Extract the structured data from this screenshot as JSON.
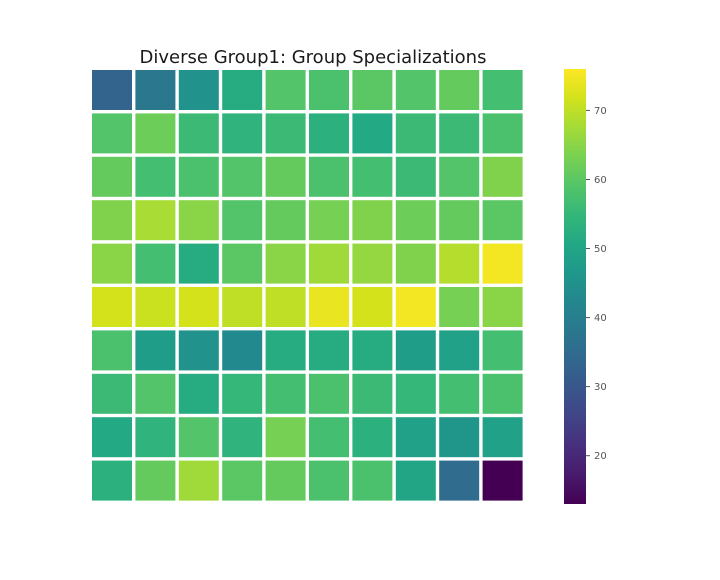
{
  "chart_data": {
    "type": "heatmap",
    "title": "Diverse Group1: Group Specializations",
    "colormap": "viridis",
    "vmin": 13,
    "vmax": 76,
    "grid": false,
    "cell_border_color": "#ffffff",
    "colorbar": {
      "ticks": [
        20,
        30,
        40,
        50,
        60,
        70
      ],
      "tick_labels": [
        "20",
        "30",
        "40",
        "50",
        "60",
        "70"
      ],
      "placement": "right"
    },
    "rows": 10,
    "cols": 10,
    "values": [
      [
        33,
        38,
        45,
        52,
        59,
        58,
        60,
        59,
        61,
        57
      ],
      [
        59,
        62,
        56,
        54,
        56,
        53,
        51,
        56,
        56,
        58
      ],
      [
        61,
        57,
        58,
        59,
        61,
        58,
        57,
        56,
        59,
        64
      ],
      [
        64,
        68,
        65,
        59,
        61,
        63,
        64,
        62,
        61,
        60
      ],
      [
        65,
        57,
        52,
        60,
        65,
        67,
        66,
        64,
        69,
        75
      ],
      [
        72,
        71,
        72,
        70,
        70,
        74,
        72,
        75,
        63,
        65
      ],
      [
        58,
        48,
        45,
        43,
        52,
        52,
        52,
        48,
        49,
        57
      ],
      [
        56,
        59,
        52,
        55,
        57,
        58,
        56,
        55,
        57,
        58
      ],
      [
        51,
        54,
        59,
        54,
        63,
        57,
        53,
        49,
        46,
        49
      ],
      [
        53,
        61,
        67,
        60,
        61,
        58,
        58,
        50,
        35,
        13
      ]
    ]
  }
}
